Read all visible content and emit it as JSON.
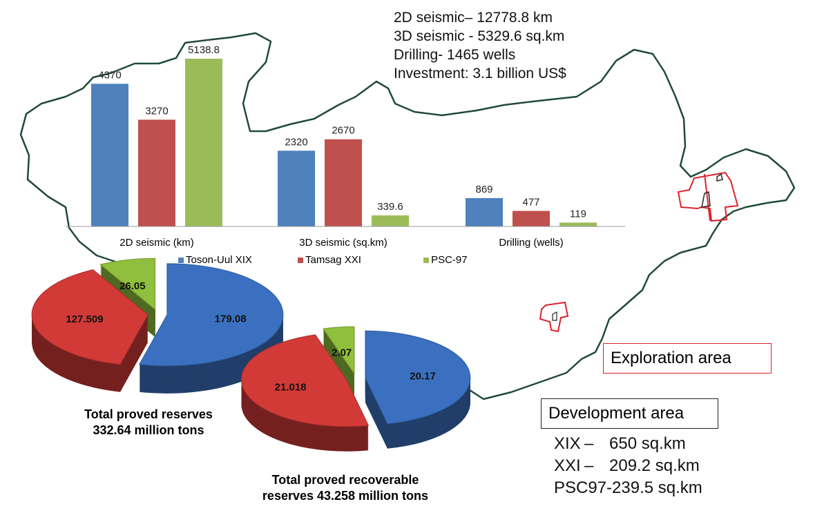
{
  "stats": [
    "2D seismic– 12778.8 km",
    "3D seismic -  5329.6 sq.km",
    "Drilling- 1465 wells",
    "Investment: 3.1 billion US$"
  ],
  "chart_data": [
    {
      "type": "bar",
      "categories": [
        "2D seismic (km)",
        "3D seismic (sq.km)",
        "Drilling (wells)"
      ],
      "series": [
        {
          "name": "Toson-Uul XIX",
          "color": "#4f81bd",
          "values": [
            4370,
            2320,
            869
          ],
          "labels": [
            "4370",
            "2320",
            "869"
          ]
        },
        {
          "name": "Tamsag XXI",
          "color": "#c0504d",
          "values": [
            3270,
            2670,
            477
          ],
          "labels": [
            "3270",
            "2670",
            "477"
          ]
        },
        {
          "name": "PSC-97",
          "color": "#9bbb59",
          "values": [
            5138.8,
            339.6,
            119
          ],
          "labels": [
            "5138.8",
            "339.6",
            "119"
          ]
        }
      ],
      "ylim": [
        0,
        5138.8
      ],
      "legend": "bottom"
    },
    {
      "type": "pie",
      "title": "Total proved reserves 332.64 million tons",
      "caption_lines": [
        "Total proved reserves",
        "332.64 million tons"
      ],
      "slices": [
        {
          "name": "Toson-Uul XIX",
          "value": 179.08,
          "label": "179.08",
          "color": "#3a70bf"
        },
        {
          "name": "Tamsag XXI",
          "value": 127.509,
          "label": "127.509",
          "color": "#d23a38"
        },
        {
          "name": "PSC-97",
          "value": 26.05,
          "label": "26.05",
          "color": "#8fbf3c"
        }
      ]
    },
    {
      "type": "pie",
      "title": "Total proved recoverable reserves 43.258 million tons",
      "caption_lines": [
        "Total proved recoverable",
        "reserves 43.258 million tons"
      ],
      "slices": [
        {
          "name": "Toson-Uul XIX",
          "value": 20.17,
          "label": "20.17",
          "color": "#3a70bf"
        },
        {
          "name": "Tamsag XXI",
          "value": 21.018,
          "label": "21.018",
          "color": "#d23a38"
        },
        {
          "name": "PSC-97",
          "value": 2.07,
          "label": "2.07",
          "color": "#8fbf3c"
        }
      ]
    }
  ],
  "legend_boxes": {
    "exploration": "Exploration area",
    "development": "Development area"
  },
  "development_areas": [
    {
      "name": "XIX",
      "sep": "–",
      "area": "650 sq.km"
    },
    {
      "name": "XXI",
      "sep": "–",
      "area": "209.2 sq.km"
    },
    {
      "name": "PSC97-",
      "sep": "",
      "area": "239.5 sq.km"
    }
  ],
  "colors": {
    "border": "#1f4a36",
    "exploration": "#e0202a"
  }
}
